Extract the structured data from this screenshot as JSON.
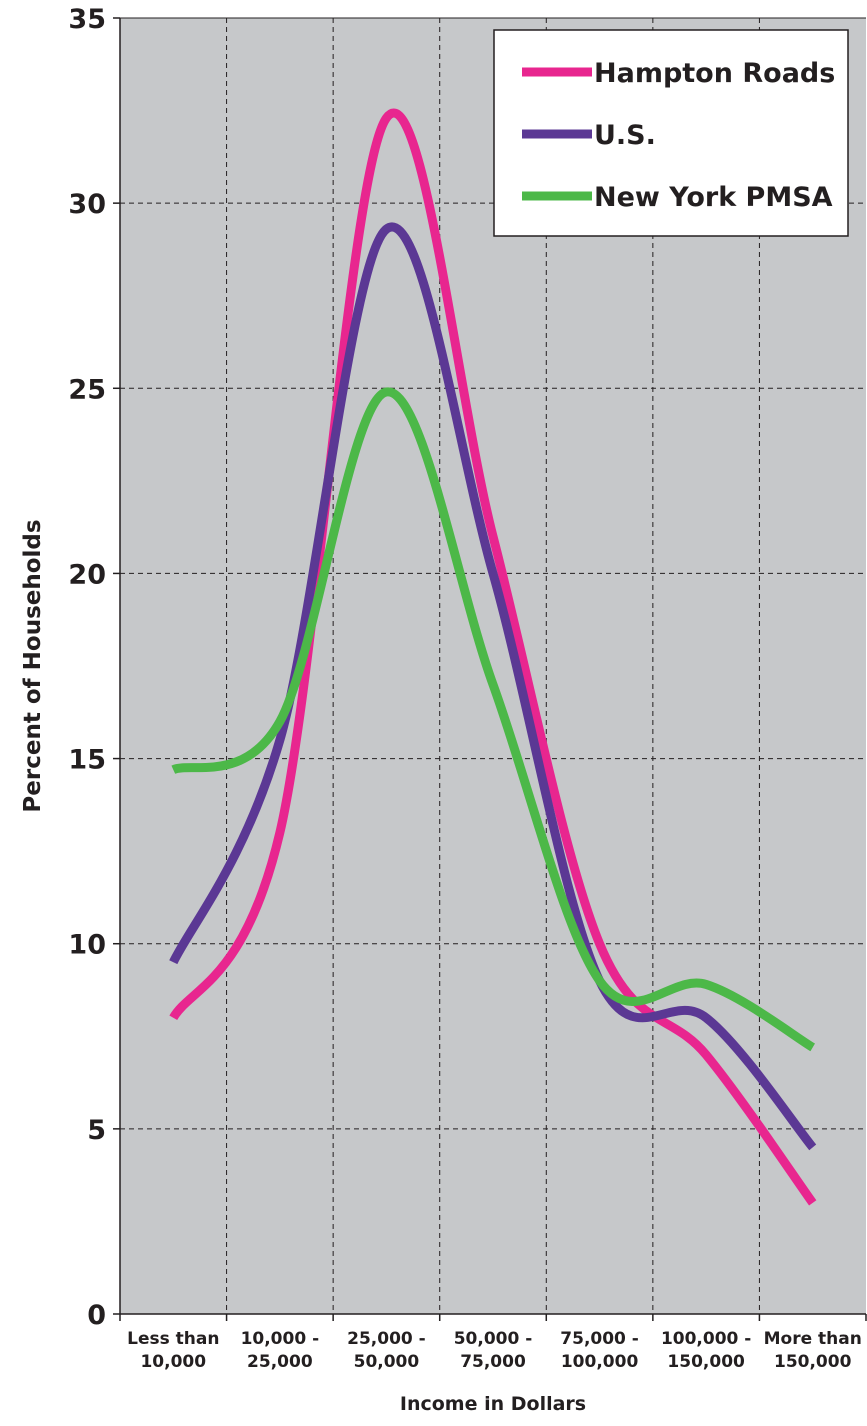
{
  "chart_data": {
    "type": "line",
    "title": "",
    "xlabel": "Income in Dollars",
    "ylabel": "Percent of Households",
    "ylim": [
      0,
      35
    ],
    "yticks": [
      0,
      5,
      10,
      15,
      20,
      25,
      30,
      35
    ],
    "grid": true,
    "legend_position": "top-right",
    "categories": [
      [
        "Less than",
        "10,000"
      ],
      [
        "10,000 -",
        "25,000"
      ],
      [
        "25,000 -",
        "50,000"
      ],
      [
        "50,000 -",
        "75,000"
      ],
      [
        "75,000 -",
        "100,000"
      ],
      [
        "100,000 -",
        "150,000"
      ],
      [
        "More than",
        "150,000"
      ]
    ],
    "series": [
      {
        "name": "Hampton Roads",
        "color": "#e8268f",
        "values": [
          8.0,
          13.0,
          32.3,
          21.0,
          10.0,
          7.0,
          3.0
        ]
      },
      {
        "name": "U.S.",
        "color": "#5b3894",
        "values": [
          9.5,
          15.5,
          29.3,
          20.0,
          9.0,
          8.0,
          4.5
        ]
      },
      {
        "name": "New York PMSA",
        "color": "#4cb848",
        "values": [
          14.7,
          16.0,
          24.9,
          17.0,
          9.0,
          8.9,
          7.2
        ]
      }
    ],
    "colors": {
      "plot_background": "#c6c8ca",
      "grid": "#231f20"
    }
  }
}
